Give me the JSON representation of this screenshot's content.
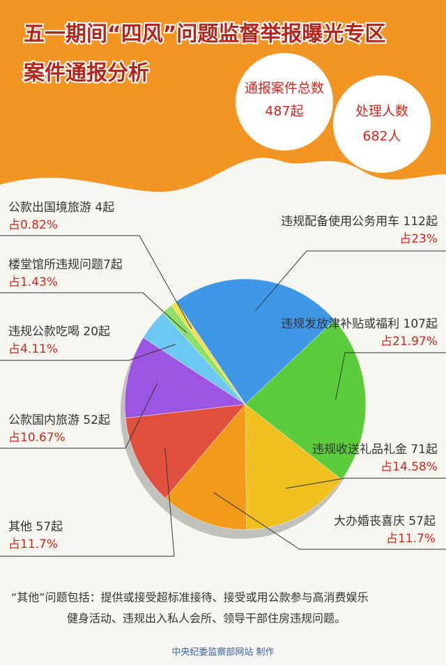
{
  "chart_data": {
    "type": "pie",
    "title": "五一期间“四风”问题监督举报曝光专区",
    "subtitle": "案件通报分析",
    "stats": [
      {
        "label": "通报案件总数",
        "value": "487起"
      },
      {
        "label": "处理人数",
        "value": "682人"
      }
    ],
    "categories": [
      "违规配备使用公务用车 112起",
      "违规发放津补贴或福利 107起",
      "违规收送礼品礼金 71起",
      "大办婚丧喜庆 57起",
      "其他 57起",
      "公款国内旅游 52起",
      "违规公款吃喝 20起",
      "楼堂馆所违规问题7起",
      "公款出国境旅游 4起"
    ],
    "values": [
      23,
      21.97,
      14.58,
      11.7,
      11.7,
      10.67,
      4.11,
      1.43,
      0.82
    ],
    "value_labels": [
      "占23%",
      "占21.97%",
      "占14.58%",
      "占11.7%",
      "占11.7%",
      "占10.67%",
      "占4.11%",
      "占1.43%",
      "占0.82%"
    ],
    "colors": [
      "#3f97e6",
      "#5ccb3c",
      "#f0c020",
      "#f29a1c",
      "#e0503f",
      "#9b55e0",
      "#6cc7f2",
      "#8ee06a",
      "#f2e050"
    ],
    "note": [
      "“其他”问题包括：提供或接受超标准接待、接受或用公款参与高消费娱乐",
      "健身活动、违规出入私人会所、领导干部住房违规问题。"
    ],
    "footer": "中央纪委监察部网站 制作"
  }
}
